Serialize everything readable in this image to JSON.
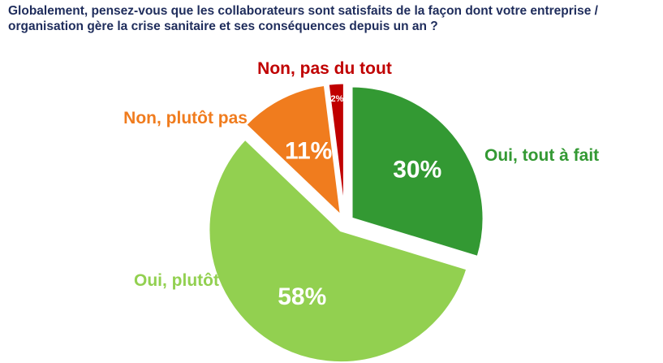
{
  "title": "Globalement, pensez-vous que les collaborateurs sont satisfaits de la façon dont votre entreprise / organisation gère la crise sanitaire et ses conséquences depuis un an ?",
  "colors": {
    "title": "#1f2d5c",
    "oui_tout_a_fait": "#339933",
    "oui_plutot": "#92d050",
    "non_plutot_pas": "#f07c1e",
    "non_pas_du_tout": "#c00000",
    "slice_border": "#ffffff"
  },
  "chart_data": {
    "type": "pie",
    "title": "Globalement, pensez-vous que les collaborateurs sont satisfaits de la façon dont votre entreprise / organisation gère la crise sanitaire et ses conséquences depuis un an ?",
    "start": "12 o'clock, clockwise",
    "exploded": true,
    "slices": [
      {
        "label": "Oui, tout à fait",
        "value": 30,
        "value_label": "30%",
        "color": "#339933"
      },
      {
        "label": "Oui, plutôt",
        "value": 58,
        "value_label": "58%",
        "color": "#92d050"
      },
      {
        "label": "Non, plutôt pas",
        "value": 11,
        "value_label": "11%",
        "color": "#f07c1e"
      },
      {
        "label": "Non, pas du tout",
        "value": 2,
        "value_label": "2%",
        "color": "#c00000"
      }
    ]
  }
}
